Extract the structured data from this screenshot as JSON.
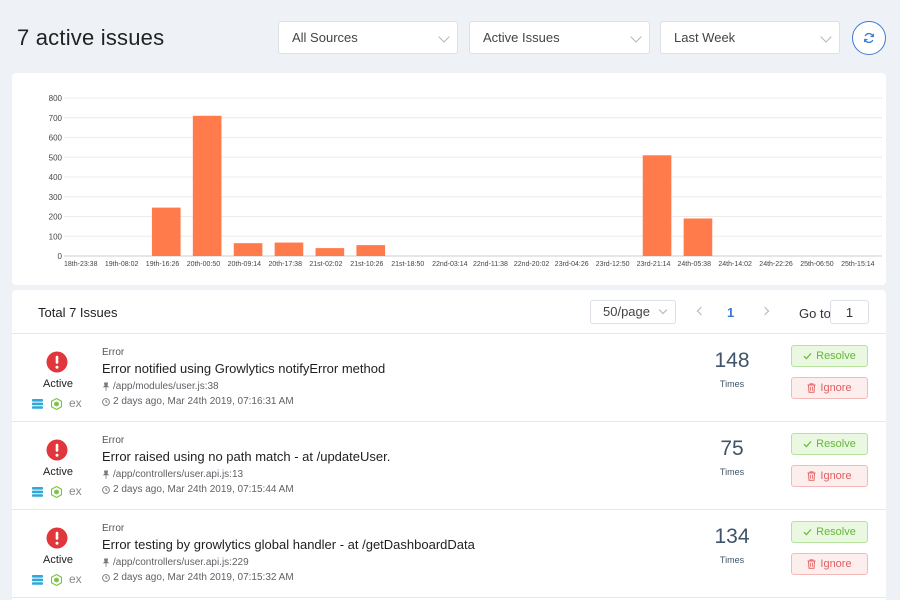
{
  "header": {
    "title": "7 active issues",
    "source_filter": "All Sources",
    "status_filter": "Active Issues",
    "time_filter": "Last Week"
  },
  "chart_data": {
    "type": "bar",
    "categories": [
      "18th-23:38",
      "19th-08:02",
      "19th-16:26",
      "20th-00:50",
      "20th-09:14",
      "20th-17:38",
      "21st-02:02",
      "21st-10:26",
      "21st-18:50",
      "22nd-03:14",
      "22nd-11:38",
      "22nd-20:02",
      "23rd-04:26",
      "23rd-12:50",
      "23rd-21:14",
      "24th-05:38",
      "24th-14:02",
      "24th-22:26",
      "25th-06:50",
      "25th-15:14"
    ],
    "values": [
      0,
      0,
      245,
      710,
      65,
      68,
      40,
      55,
      0,
      0,
      0,
      0,
      0,
      0,
      510,
      190,
      0,
      0,
      0,
      0
    ],
    "ylim": [
      0,
      800
    ],
    "yticks": [
      0,
      100,
      200,
      300,
      400,
      500,
      600,
      700,
      800
    ],
    "grid": true,
    "bar_color": "#ff7b4c"
  },
  "list": {
    "total_label": "Total 7 Issues",
    "page_size": "50/page",
    "current_page": "1",
    "goto_label": "Go to",
    "goto_value": "1"
  },
  "issues": [
    {
      "status": "Active",
      "tag_text": "ex",
      "kind": "Error",
      "title": "Error notified using Growlytics notifyError method",
      "file": "/app/modules/user.js:38",
      "time": "2 days ago, Mar 24th 2019, 07:16:31 AM",
      "count": "148",
      "count_label": "Times",
      "resolve_label": "Resolve",
      "ignore_label": "Ignore"
    },
    {
      "status": "Active",
      "tag_text": "ex",
      "kind": "Error",
      "title": "Error raised using no path match - at /updateUser.",
      "file": "/app/controllers/user.api.js:13",
      "time": "2 days ago, Mar 24th 2019, 07:15:44 AM",
      "count": "75",
      "count_label": "Times",
      "resolve_label": "Resolve",
      "ignore_label": "Ignore"
    },
    {
      "status": "Active",
      "tag_text": "ex",
      "kind": "Error",
      "title": "Error testing by growlytics global handler - at /getDashboardData",
      "file": "/app/controllers/user.api.js:229",
      "time": "2 days ago, Mar 24th 2019, 07:15:32 AM",
      "count": "134",
      "count_label": "Times",
      "resolve_label": "Resolve",
      "ignore_label": "Ignore"
    }
  ]
}
